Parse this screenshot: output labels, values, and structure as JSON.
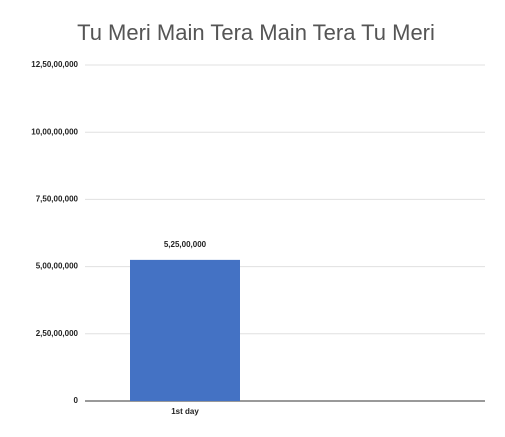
{
  "chart_data": {
    "type": "bar",
    "title": "Tu Meri Main Tera Main Tera Tu Meri",
    "categories": [
      "1st day",
      null
    ],
    "values": [
      52500000,
      null
    ],
    "value_labels": [
      "5,25,00,000",
      null
    ],
    "color": "#4472c4",
    "ylim": [
      0,
      125000000
    ],
    "yticks": [
      0,
      {
        "value": 25000000,
        "label": "2,50,00,000"
      },
      {
        "value": 50000000,
        "label": "5,00,00,000"
      },
      {
        "value": 75000000,
        "label": "7,50,00,000"
      },
      {
        "value": 100000000,
        "label": "10,00,00,000"
      },
      {
        "value": 125000000,
        "label": "12,50,00,000"
      }
    ],
    "grid": true
  }
}
